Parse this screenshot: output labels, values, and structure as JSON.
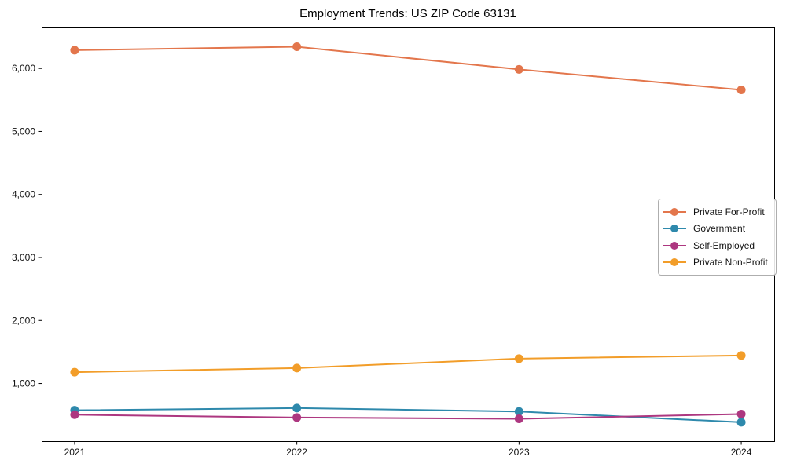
{
  "chart_data": {
    "type": "line",
    "title": "Employment Trends: US ZIP Code 63131",
    "xlabel": "",
    "ylabel": "",
    "x": [
      "2021",
      "2022",
      "2023",
      "2024"
    ],
    "series": [
      {
        "name": "Private For-Profit",
        "color": "#E3764C",
        "values": [
          6290,
          6345,
          5985,
          5660
        ]
      },
      {
        "name": "Government",
        "color": "#2E89AC",
        "values": [
          575,
          610,
          555,
          385
        ]
      },
      {
        "name": "Self-Employed",
        "color": "#AD3780",
        "values": [
          505,
          460,
          440,
          515
        ]
      },
      {
        "name": "Private Non-Profit",
        "color": "#F29D29",
        "values": [
          1180,
          1245,
          1395,
          1445
        ]
      }
    ],
    "ylim": [
      85,
      6650
    ],
    "yticks": [
      {
        "value": 1000,
        "label": "1,000"
      },
      {
        "value": 2000,
        "label": "2,000"
      },
      {
        "value": 3000,
        "label": "3,000"
      },
      {
        "value": 4000,
        "label": "4,000"
      },
      {
        "value": 5000,
        "label": "5,000"
      },
      {
        "value": 6000,
        "label": "6,000"
      }
    ],
    "grid": false,
    "legend_position": "center right"
  }
}
